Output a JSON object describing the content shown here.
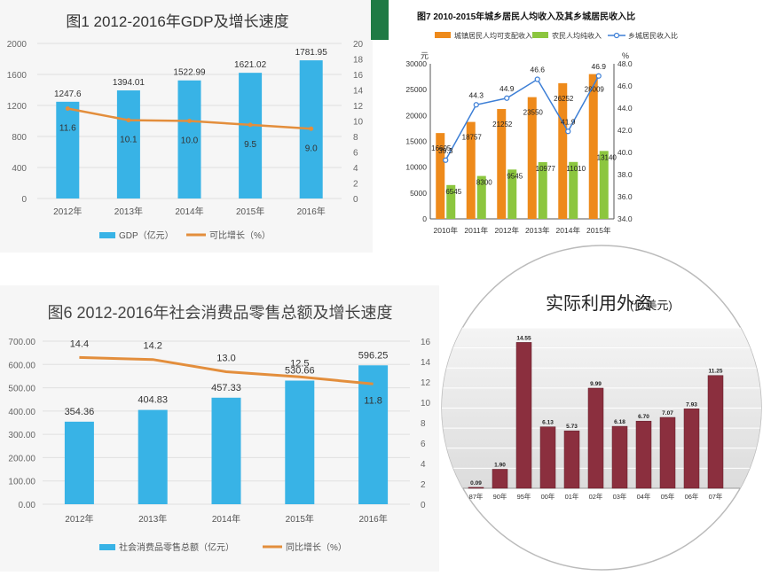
{
  "chart_data": [
    {
      "type": "bar",
      "title": "图1 2012-2016年GDP及增长速度",
      "categories": [
        "2012年",
        "2013年",
        "2014年",
        "2015年",
        "2016年"
      ],
      "series": [
        {
          "name": "GDP（亿元）",
          "type": "bar",
          "axis": "left",
          "values": [
            1247.6,
            1394.01,
            1522.99,
            1621.02,
            1781.95
          ]
        },
        {
          "name": "可比增长（%）",
          "type": "line",
          "axis": "right",
          "values": [
            11.6,
            10.1,
            10.0,
            9.5,
            9.0
          ]
        }
      ],
      "y_left": {
        "range": [
          0,
          2000
        ],
        "ticks": [
          "0",
          "400",
          "800",
          "1200",
          "1600",
          "2000"
        ]
      },
      "y_right": {
        "range": [
          0,
          20
        ],
        "ticks": [
          "0",
          "2",
          "4",
          "6",
          "8",
          "10",
          "12",
          "14",
          "16",
          "18",
          "20"
        ]
      },
      "legend": "bottom",
      "colors": {
        "bar": "#38b3e6",
        "line": "#e38e3c"
      }
    },
    {
      "type": "bar",
      "title": "图7  2010-2015年城乡居民人均收入及其乡城居民收入比",
      "categories": [
        "2010年",
        "2011年",
        "2012年",
        "2013年",
        "2014年",
        "2015年"
      ],
      "series": [
        {
          "name": "城镇居民人均可支配收入",
          "type": "bar",
          "axis": "left",
          "values": [
            16605,
            18757,
            21252,
            23550,
            26252,
            28009
          ]
        },
        {
          "name": "农民人均纯收入",
          "type": "bar",
          "axis": "left",
          "values": [
            6545,
            8300,
            9545,
            10977,
            11010,
            13140
          ]
        },
        {
          "name": "乡城居民收入比",
          "type": "line",
          "axis": "right",
          "values": [
            39.3,
            44.3,
            44.9,
            46.6,
            41.9,
            46.9
          ]
        }
      ],
      "y_left": {
        "label": "元",
        "range": [
          0,
          30000
        ],
        "ticks": [
          "0",
          "5000",
          "10000",
          "15000",
          "20000",
          "25000",
          "30000"
        ]
      },
      "y_right": {
        "label": "%",
        "range": [
          34,
          48
        ],
        "ticks": [
          "34.0",
          "36.0",
          "38.0",
          "40.0",
          "42.0",
          "44.0",
          "46.0",
          "48.0"
        ]
      },
      "legend": "top",
      "colors": {
        "urban": "#ee8a1b",
        "rural": "#8cc63f",
        "line": "#3d7fd6"
      }
    },
    {
      "type": "bar",
      "title": "图6 2012-2016年社会消费品零售总额及增长速度",
      "categories": [
        "2012年",
        "2013年",
        "2014年",
        "2015年",
        "2016年"
      ],
      "series": [
        {
          "name": "社会消费品零售总额（亿元）",
          "type": "bar",
          "axis": "left",
          "values": [
            354.36,
            404.83,
            457.33,
            530.66,
            596.25
          ]
        },
        {
          "name": "同比增长（%）",
          "type": "line",
          "axis": "right",
          "values": [
            14.4,
            14.2,
            13.0,
            12.5,
            11.8
          ]
        }
      ],
      "y_left": {
        "range": [
          0,
          700
        ],
        "ticks": [
          "0.00",
          "100.00",
          "200.00",
          "300.00",
          "400.00",
          "500.00",
          "600.00",
          "700.00"
        ]
      },
      "y_right": {
        "range": [
          0,
          16
        ],
        "ticks": [
          "0",
          "2",
          "4",
          "6",
          "8",
          "10",
          "12",
          "14",
          "16"
        ]
      },
      "legend": "bottom",
      "colors": {
        "bar": "#38b3e6",
        "line": "#e38e3c"
      }
    },
    {
      "type": "bar",
      "title": "实际利用外资",
      "unit": "(亿美元)",
      "categories": [
        "87年",
        "90年",
        "95年",
        "00年",
        "01年",
        "02年",
        "03年",
        "04年",
        "05年",
        "06年",
        "07年"
      ],
      "values": [
        0.09,
        1.9,
        14.55,
        6.13,
        5.73,
        9.99,
        6.18,
        6.7,
        7.07,
        7.93,
        11.25
      ],
      "value_labels": [
        "0.09",
        "1.90",
        "14.55",
        "6.13",
        "5.73",
        "9.99",
        "6.18",
        "6.70",
        "7.07",
        "7.93",
        "11.25"
      ],
      "y_range": [
        0,
        16
      ],
      "colors": {
        "bar": "#8b2f3e"
      }
    }
  ]
}
